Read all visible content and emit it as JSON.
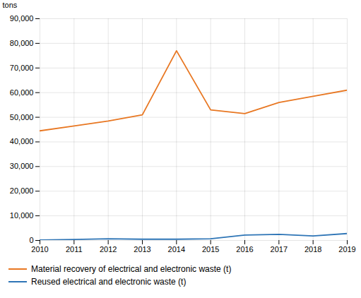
{
  "chart_data": {
    "type": "line",
    "ylabel": "tons",
    "x": [
      2010,
      2011,
      2012,
      2013,
      2014,
      2015,
      2016,
      2017,
      2018,
      2019
    ],
    "series": [
      {
        "name": "Material recovery of electrical and electronic waste (t)",
        "color": "#E87722",
        "values": [
          44500,
          46500,
          48500,
          51000,
          77000,
          53000,
          51500,
          56000,
          58500,
          61000
        ]
      },
      {
        "name": "Reused electrical and electronic waste (t)",
        "color": "#2E75B6",
        "values": [
          200,
          400,
          700,
          500,
          500,
          700,
          2200,
          2500,
          1800,
          2800
        ]
      }
    ],
    "xlim": [
      2010,
      2019
    ],
    "xticks": [
      2010,
      2011,
      2012,
      2013,
      2014,
      2015,
      2016,
      2017,
      2018,
      2019
    ],
    "ylim": [
      0,
      90000
    ],
    "yticks": [
      0,
      {
        "value": 10000,
        "label": "10,000"
      },
      {
        "value": 20000,
        "label": "20,000"
      },
      {
        "value": 30000,
        "label": "30,000"
      },
      {
        "value": 40000,
        "label": "40,000"
      },
      {
        "value": 50000,
        "label": "50,000"
      },
      {
        "value": 60000,
        "label": "60,000"
      },
      {
        "value": 70000,
        "label": "70,000"
      },
      {
        "value": 80000,
        "label": "80,000"
      },
      {
        "value": 90000,
        "label": "90,000"
      }
    ],
    "grid": true,
    "legend": "bottom"
  }
}
